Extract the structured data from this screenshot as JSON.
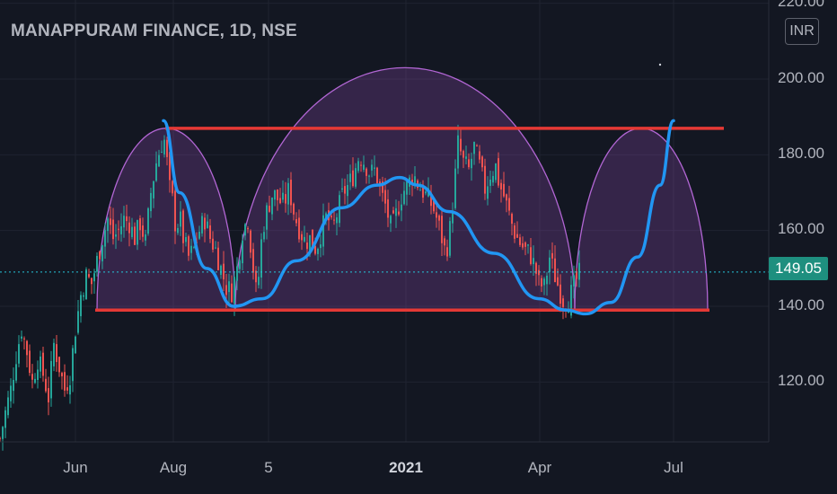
{
  "header": {
    "title": "MANAPPURAM FINANCE, 1D, NSE",
    "currency": "INR"
  },
  "price_badge": "149.05",
  "y_axis_labels": [
    "220.00",
    "200.00",
    "180.00",
    "160.00",
    "140.00",
    "120.00"
  ],
  "x_axis_labels": [
    "Jun",
    "Aug",
    "5",
    "2021",
    "Apr",
    "Jul"
  ],
  "colors": {
    "background": "#131722",
    "up": "#26a69a",
    "down": "#ef5350",
    "level_line": "#e53935",
    "trend_curve": "#2196f3",
    "arc_stroke": "#b266d4",
    "arc_fill": "rgba(156, 80, 190, 0.25)",
    "price_line": "#26c6da"
  },
  "chart_data": {
    "type": "candlestick",
    "ylim": [
      100,
      222
    ],
    "x_ticks": [
      "Jun",
      "Aug",
      "5",
      "2021",
      "Apr",
      "Jul"
    ],
    "y_ticks": [
      120,
      140,
      160,
      180,
      200,
      220
    ],
    "last_price": 149.05,
    "resistance_level": 187,
    "support_level": 139,
    "close_path": [
      [
        0,
        105
      ],
      [
        6,
        112
      ],
      [
        12,
        118
      ],
      [
        18,
        127
      ],
      [
        24,
        134
      ],
      [
        30,
        128
      ],
      [
        36,
        120
      ],
      [
        42,
        126
      ],
      [
        48,
        122
      ],
      [
        54,
        116
      ],
      [
        60,
        130
      ],
      [
        66,
        124
      ],
      [
        72,
        118
      ],
      [
        78,
        122
      ],
      [
        84,
        134
      ],
      [
        90,
        143
      ],
      [
        96,
        148
      ],
      [
        102,
        146
      ],
      [
        108,
        152
      ],
      [
        114,
        158
      ],
      [
        120,
        163
      ],
      [
        126,
        158
      ],
      [
        132,
        160
      ],
      [
        138,
        163
      ],
      [
        144,
        162
      ],
      [
        150,
        158
      ],
      [
        156,
        162
      ],
      [
        162,
        157
      ],
      [
        168,
        170
      ],
      [
        174,
        178
      ],
      [
        180,
        183
      ],
      [
        184,
        184
      ],
      [
        188,
        172
      ],
      [
        192,
        168
      ],
      [
        196,
        160
      ],
      [
        200,
        164
      ],
      [
        204,
        158
      ],
      [
        210,
        153
      ],
      [
        216,
        155
      ],
      [
        222,
        160
      ],
      [
        228,
        163
      ],
      [
        234,
        158
      ],
      [
        240,
        155
      ],
      [
        246,
        150
      ],
      [
        252,
        145
      ],
      [
        258,
        144
      ],
      [
        264,
        150
      ],
      [
        270,
        160
      ],
      [
        276,
        163
      ],
      [
        282,
        150
      ],
      [
        286,
        142
      ],
      [
        292,
        160
      ],
      [
        298,
        166
      ],
      [
        304,
        170
      ],
      [
        310,
        168
      ],
      [
        316,
        167
      ],
      [
        322,
        171
      ],
      [
        328,
        164
      ],
      [
        334,
        160
      ],
      [
        340,
        157
      ],
      [
        346,
        158
      ],
      [
        352,
        155
      ],
      [
        358,
        160
      ],
      [
        364,
        164
      ],
      [
        370,
        160
      ],
      [
        376,
        165
      ],
      [
        382,
        170
      ],
      [
        388,
        172
      ],
      [
        394,
        175
      ],
      [
        400,
        180
      ],
      [
        406,
        178
      ],
      [
        412,
        175
      ],
      [
        418,
        176
      ],
      [
        424,
        170
      ],
      [
        430,
        166
      ],
      [
        436,
        160
      ],
      [
        442,
        165
      ],
      [
        448,
        170
      ],
      [
        454,
        172
      ],
      [
        460,
        175
      ],
      [
        466,
        172
      ],
      [
        472,
        170
      ],
      [
        478,
        168
      ],
      [
        484,
        165
      ],
      [
        490,
        160
      ],
      [
        496,
        154
      ],
      [
        500,
        158
      ],
      [
        506,
        172
      ],
      [
        510,
        183
      ],
      [
        516,
        178
      ],
      [
        522,
        176
      ],
      [
        528,
        182
      ],
      [
        534,
        177
      ],
      [
        540,
        171
      ],
      [
        546,
        175
      ],
      [
        552,
        177
      ],
      [
        556,
        172
      ],
      [
        560,
        170
      ],
      [
        566,
        165
      ],
      [
        572,
        160
      ],
      [
        578,
        157
      ],
      [
        584,
        155
      ],
      [
        590,
        154
      ],
      [
        596,
        150
      ],
      [
        600,
        146
      ],
      [
        606,
        145
      ],
      [
        612,
        153
      ],
      [
        618,
        148
      ],
      [
        622,
        145
      ],
      [
        628,
        141
      ],
      [
        634,
        142
      ],
      [
        640,
        146
      ],
      [
        646,
        149
      ]
    ],
    "curves": {
      "arc_1": {
        "x_start": 108,
        "x_end": 262,
        "y_base": 139,
        "peak_y": 187
      },
      "arc_2": {
        "x_start": 262,
        "x_end": 640,
        "y_base": 139,
        "peak_y": 203
      },
      "arc_3": {
        "x_start": 640,
        "x_end": 788,
        "y_base": 139,
        "peak_y": 187
      }
    }
  }
}
